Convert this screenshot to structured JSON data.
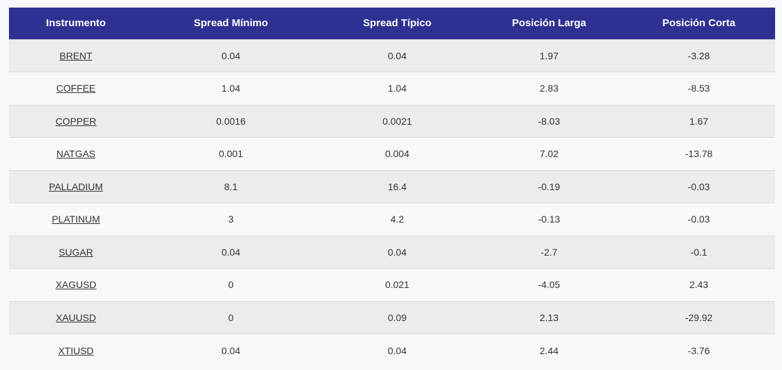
{
  "table": {
    "headers": [
      "Instrumento",
      "Spread Mínimo",
      "Spread Típico",
      "Posición Larga",
      "Posición Corta"
    ],
    "rows": [
      {
        "instrument": "BRENT",
        "spread_min": "0.04",
        "spread_typ": "0.04",
        "long": "1.97",
        "short": "-3.28"
      },
      {
        "instrument": "COFFEE",
        "spread_min": "1.04",
        "spread_typ": "1.04",
        "long": "2.83",
        "short": "-8.53"
      },
      {
        "instrument": "COPPER",
        "spread_min": "0.0016",
        "spread_typ": "0.0021",
        "long": "-8.03",
        "short": "1.67"
      },
      {
        "instrument": "NATGAS",
        "spread_min": "0.001",
        "spread_typ": "0.004",
        "long": "7.02",
        "short": "-13.78"
      },
      {
        "instrument": "PALLADIUM",
        "spread_min": "8.1",
        "spread_typ": "16.4",
        "long": "-0.19",
        "short": "-0.03"
      },
      {
        "instrument": "PLATINUM",
        "spread_min": "3",
        "spread_typ": "4.2",
        "long": "-0.13",
        "short": "-0.03"
      },
      {
        "instrument": "SUGAR",
        "spread_min": "0.04",
        "spread_typ": "0.04",
        "long": "-2.7",
        "short": "-0.1"
      },
      {
        "instrument": "XAGUSD",
        "spread_min": "0",
        "spread_typ": "0.021",
        "long": "-4.05",
        "short": "2.43"
      },
      {
        "instrument": "XAUUSD",
        "spread_min": "0",
        "spread_typ": "0.09",
        "long": "2.13",
        "short": "-29.92"
      },
      {
        "instrument": "XTIUSD",
        "spread_min": "0.04",
        "spread_typ": "0.04",
        "long": "2.44",
        "short": "-3.76"
      }
    ]
  },
  "colors": {
    "header_bg": "#2e3192",
    "header_text": "#ffffff",
    "row_odd_bg": "#ececed",
    "row_even_bg": "#f7f8fa",
    "cell_text": "#333333"
  }
}
